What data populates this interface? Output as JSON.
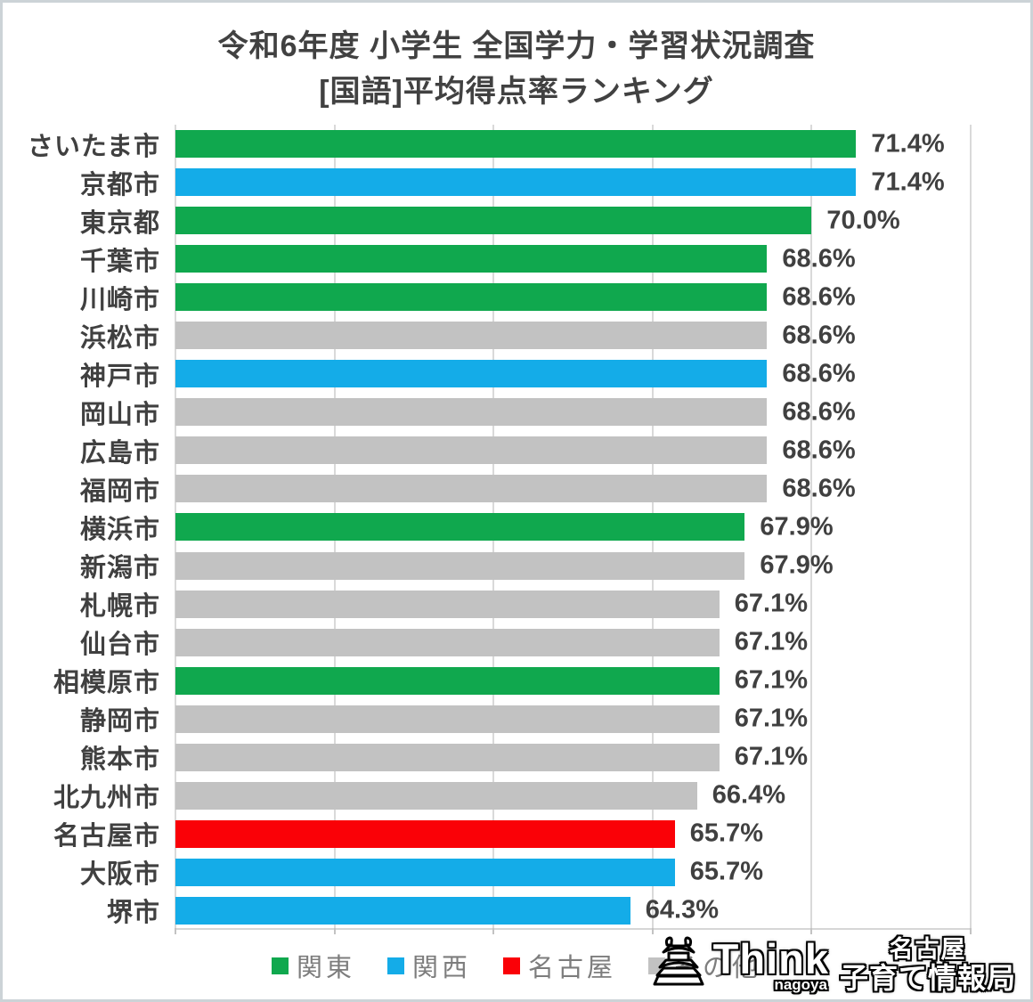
{
  "title": {
    "line1": "令和6年度 小学生 全国学力・学習状況調査",
    "line2": "[国語]平均得点率ランキング"
  },
  "chart_data": {
    "type": "bar",
    "orientation": "horizontal",
    "title": "令和6年度 小学生 全国学力・学習状況調査 [国語]平均得点率ランキング",
    "xlabel": "",
    "ylabel": "",
    "xlim": [
      50,
      75
    ],
    "gridline_step": 5,
    "grid": true,
    "legend_position": "bottom",
    "categories": [
      "さいたま市",
      "京都市",
      "東京都",
      "千葉市",
      "川崎市",
      "浜松市",
      "神戸市",
      "岡山市",
      "広島市",
      "福岡市",
      "横浜市",
      "新潟市",
      "札幌市",
      "仙台市",
      "相模原市",
      "静岡市",
      "熊本市",
      "北九州市",
      "名古屋市",
      "大阪市",
      "堺市"
    ],
    "values": [
      71.4,
      71.4,
      70.0,
      68.6,
      68.6,
      68.6,
      68.6,
      68.6,
      68.6,
      68.6,
      67.9,
      67.9,
      67.1,
      67.1,
      67.1,
      67.1,
      67.1,
      66.4,
      65.7,
      65.7,
      64.3
    ],
    "value_labels": [
      "71.4%",
      "71.4%",
      "70.0%",
      "68.6%",
      "68.6%",
      "68.6%",
      "68.6%",
      "68.6%",
      "68.6%",
      "68.6%",
      "67.9%",
      "67.9%",
      "67.1%",
      "67.1%",
      "67.1%",
      "67.1%",
      "67.1%",
      "66.4%",
      "65.7%",
      "65.7%",
      "64.3%"
    ],
    "regions": [
      "関東",
      "関西",
      "関東",
      "関東",
      "関東",
      "その他",
      "関西",
      "その他",
      "その他",
      "その他",
      "関東",
      "その他",
      "その他",
      "その他",
      "関東",
      "その他",
      "その他",
      "その他",
      "名古屋",
      "関西",
      "関西"
    ],
    "colors": {
      "関東": "#10a84e",
      "関西": "#14ace8",
      "名古屋": "#fa0107",
      "その他": "#c2c2c2"
    }
  },
  "legend": {
    "items": [
      {
        "label": "関東",
        "region": "関東"
      },
      {
        "label": "関西",
        "region": "関西"
      },
      {
        "label": "名古屋",
        "region": "名古屋"
      },
      {
        "label": "その他",
        "region": "その他"
      }
    ]
  },
  "logo": {
    "think": "Think",
    "nagoya": "nagoya",
    "jp_line1": "名古屋",
    "jp_line2": "子育て情報局",
    "castle_icon": "nagoya-castle-icon"
  },
  "style": {
    "gridline_color": "#d9d9d9",
    "axis_color": "#c3c3c3",
    "text_color": "#404040",
    "legend_text_color": "#7d7d7d"
  }
}
